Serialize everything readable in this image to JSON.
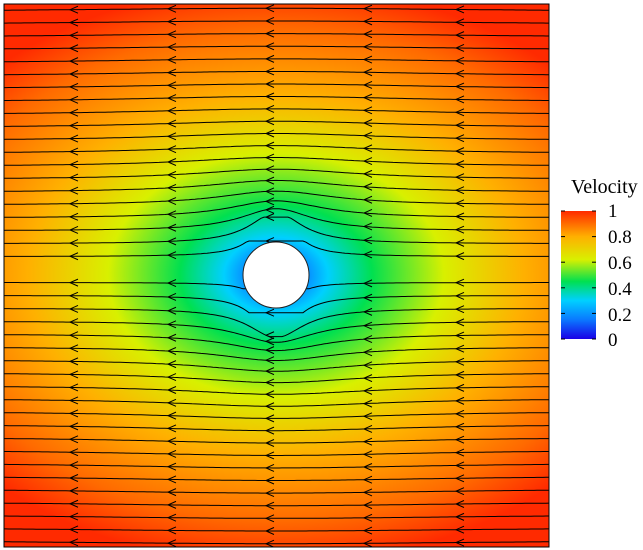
{
  "colorbar": {
    "title": "Velocity",
    "ticks": [
      "1",
      "0.8",
      "0.6",
      "0.4",
      "0.2",
      "0"
    ],
    "tick_values": [
      1,
      0.8,
      0.6,
      0.4,
      0.2,
      0
    ],
    "range": [
      0,
      1
    ],
    "colormap": [
      "#1a00e6",
      "#0a78ff",
      "#00d0ff",
      "#00e050",
      "#d8f000",
      "#ffb000",
      "#ff2a00"
    ]
  },
  "field": {
    "flow_direction": "right-to-left",
    "obstacle": "circle",
    "obstacle_color": "#ffffff",
    "streamline_color": "#000000"
  }
}
